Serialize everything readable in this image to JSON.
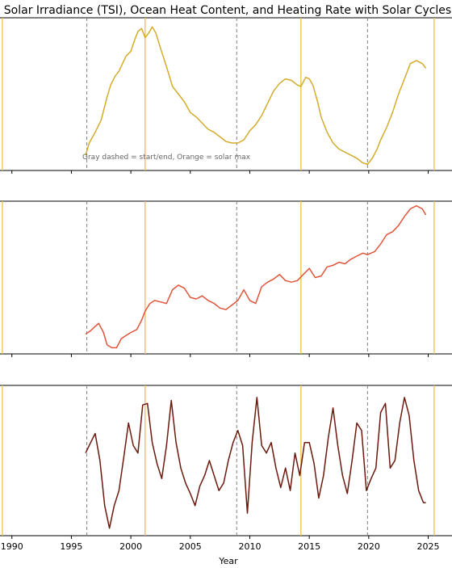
{
  "chart_data": {
    "type": "line",
    "title": "Solar Irradiance (TSI), Ocean Heat Content, and Heating Rate with Solar Cycles",
    "xlabel": "Year",
    "xlim": [
      1989.0,
      2027.0
    ],
    "xticks": [
      1990,
      1995,
      2000,
      2005,
      2010,
      2015,
      2020,
      2025
    ],
    "xtick_labels": [
      "1990",
      "1995",
      "2000",
      "2005",
      "2010",
      "2015",
      "2020",
      "2025"
    ],
    "annotation": "Gray dashed = start/end, Orange = solar max",
    "vlines_start_end": [
      1996.3,
      2008.9,
      2019.9
    ],
    "vlines_solar_max": [
      1989.2,
      2001.2,
      2014.3,
      2025.5
    ],
    "panels": [
      {
        "name": "TSI",
        "color": "#d4ac2b",
        "ylim": [
          0,
          1
        ],
        "x": [
          1996.2,
          1996.5,
          1997,
          1997.5,
          1998,
          1998.3,
          1998.7,
          1999,
          1999.3,
          1999.6,
          2000,
          2000.3,
          2000.6,
          2000.9,
          2001.2,
          2001.5,
          2001.8,
          2002.1,
          2002.5,
          2003,
          2003.5,
          2004,
          2004.5,
          2005,
          2005.5,
          2006,
          2006.5,
          2007,
          2007.5,
          2008,
          2008.5,
          2009,
          2009.5,
          2010,
          2010.5,
          2011,
          2011.5,
          2012,
          2012.5,
          2013,
          2013.5,
          2014,
          2014.3,
          2014.7,
          2015,
          2015.3,
          2015.7,
          2016,
          2016.5,
          2017,
          2017.5,
          2018,
          2018.5,
          2019,
          2019.5,
          2019.9,
          2020.3,
          2020.7,
          2021,
          2021.5,
          2022,
          2022.5,
          2023,
          2023.5,
          2024,
          2024.5,
          2024.8
        ],
        "y": [
          0.1,
          0.18,
          0.25,
          0.33,
          0.48,
          0.56,
          0.62,
          0.65,
          0.7,
          0.75,
          0.78,
          0.85,
          0.91,
          0.93,
          0.87,
          0.9,
          0.94,
          0.9,
          0.8,
          0.68,
          0.55,
          0.5,
          0.45,
          0.38,
          0.35,
          0.31,
          0.27,
          0.25,
          0.22,
          0.19,
          0.18,
          0.18,
          0.2,
          0.26,
          0.3,
          0.36,
          0.44,
          0.52,
          0.57,
          0.6,
          0.59,
          0.56,
          0.55,
          0.61,
          0.6,
          0.56,
          0.45,
          0.35,
          0.25,
          0.18,
          0.14,
          0.12,
          0.1,
          0.08,
          0.05,
          0.04,
          0.08,
          0.14,
          0.2,
          0.28,
          0.38,
          0.5,
          0.6,
          0.7,
          0.72,
          0.7,
          0.67
        ]
      },
      {
        "name": "Ocean Heat Content",
        "color": "#e0553a",
        "ylim": [
          0,
          1
        ],
        "x": [
          1996.2,
          1996.6,
          1997,
          1997.3,
          1997.7,
          1998,
          1998.4,
          1998.8,
          1999.2,
          1999.6,
          2000,
          2000.5,
          2000.9,
          2001.2,
          2001.6,
          2002,
          2002.5,
          2003,
          2003.5,
          2004,
          2004.5,
          2005,
          2005.5,
          2006,
          2006.5,
          2007,
          2007.5,
          2008,
          2008.5,
          2009,
          2009.5,
          2010,
          2010.5,
          2011,
          2011.5,
          2012,
          2012.5,
          2013,
          2013.5,
          2014,
          2014.5,
          2015,
          2015.5,
          2016,
          2016.5,
          2017,
          2017.5,
          2018,
          2018.5,
          2019,
          2019.5,
          2019.9,
          2020.5,
          2021,
          2021.5,
          2022,
          2022.5,
          2023,
          2023.5,
          2024,
          2024.5,
          2024.8
        ],
        "y": [
          0.13,
          0.15,
          0.18,
          0.2,
          0.14,
          0.06,
          0.04,
          0.04,
          0.1,
          0.12,
          0.14,
          0.16,
          0.22,
          0.28,
          0.33,
          0.35,
          0.34,
          0.33,
          0.42,
          0.45,
          0.43,
          0.37,
          0.36,
          0.38,
          0.35,
          0.33,
          0.3,
          0.29,
          0.32,
          0.35,
          0.42,
          0.35,
          0.33,
          0.44,
          0.47,
          0.49,
          0.52,
          0.48,
          0.47,
          0.48,
          0.52,
          0.56,
          0.5,
          0.51,
          0.57,
          0.58,
          0.6,
          0.59,
          0.62,
          0.64,
          0.66,
          0.65,
          0.67,
          0.72,
          0.78,
          0.8,
          0.84,
          0.9,
          0.95,
          0.97,
          0.95,
          0.91
        ]
      },
      {
        "name": "Heating Rate",
        "color": "#6b1a0e",
        "ylim": [
          0,
          1
        ],
        "x": [
          1996.2,
          1996.5,
          1997,
          1997.4,
          1997.8,
          1998.2,
          1998.6,
          1999,
          1999.4,
          1999.8,
          2000.2,
          2000.6,
          2001,
          2001.4,
          2001.8,
          2002.2,
          2002.6,
          2003,
          2003.4,
          2003.8,
          2004.2,
          2004.6,
          2005,
          2005.4,
          2005.8,
          2006.2,
          2006.6,
          2007,
          2007.4,
          2007.8,
          2008.2,
          2008.6,
          2009,
          2009.4,
          2009.8,
          2010.2,
          2010.6,
          2011,
          2011.4,
          2011.8,
          2012.2,
          2012.6,
          2013,
          2013.4,
          2013.8,
          2014.2,
          2014.6,
          2015,
          2015.4,
          2015.8,
          2016.2,
          2016.6,
          2017,
          2017.4,
          2017.8,
          2018.2,
          2018.6,
          2019,
          2019.4,
          2019.8,
          2020.2,
          2020.6,
          2021,
          2021.4,
          2021.8,
          2022.2,
          2022.6,
          2023,
          2023.4,
          2023.8,
          2024.2,
          2024.6,
          2024.8
        ],
        "y": [
          0.55,
          0.6,
          0.68,
          0.5,
          0.2,
          0.05,
          0.2,
          0.3,
          0.52,
          0.75,
          0.6,
          0.55,
          0.87,
          0.88,
          0.62,
          0.48,
          0.38,
          0.6,
          0.9,
          0.62,
          0.45,
          0.35,
          0.28,
          0.2,
          0.33,
          0.4,
          0.5,
          0.4,
          0.3,
          0.35,
          0.5,
          0.62,
          0.7,
          0.6,
          0.15,
          0.62,
          0.92,
          0.6,
          0.55,
          0.62,
          0.45,
          0.32,
          0.45,
          0.3,
          0.55,
          0.4,
          0.62,
          0.62,
          0.48,
          0.25,
          0.4,
          0.65,
          0.85,
          0.6,
          0.4,
          0.28,
          0.5,
          0.75,
          0.7,
          0.3,
          0.38,
          0.45,
          0.82,
          0.88,
          0.45,
          0.5,
          0.75,
          0.92,
          0.8,
          0.5,
          0.3,
          0.22,
          0.22
        ]
      }
    ]
  }
}
